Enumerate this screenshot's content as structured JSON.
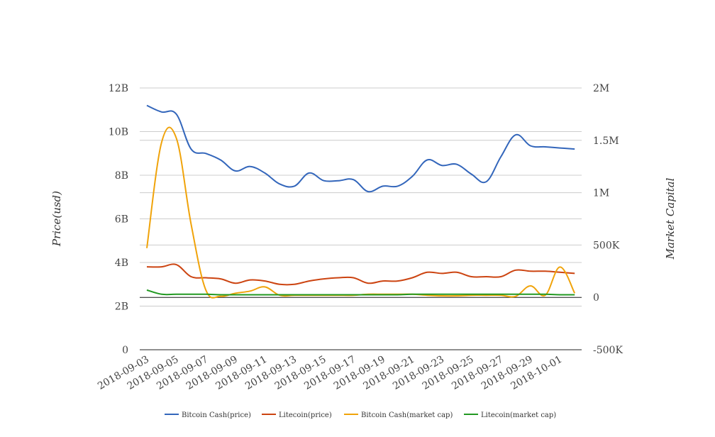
{
  "chart_data": {
    "type": "line",
    "title": "",
    "xlabel": "",
    "ylabel_left": "Price(usd)",
    "ylabel_right": "Market Capital",
    "x": [
      "2018-09-03",
      "2018-09-04",
      "2018-09-05",
      "2018-09-06",
      "2018-09-07",
      "2018-09-08",
      "2018-09-09",
      "2018-09-10",
      "2018-09-11",
      "2018-09-12",
      "2018-09-13",
      "2018-09-14",
      "2018-09-15",
      "2018-09-16",
      "2018-09-17",
      "2018-09-18",
      "2018-09-19",
      "2018-09-20",
      "2018-09-21",
      "2018-09-22",
      "2018-09-23",
      "2018-09-24",
      "2018-09-25",
      "2018-09-26",
      "2018-09-27",
      "2018-09-28",
      "2018-09-29",
      "2018-09-30",
      "2018-10-01",
      "2018-10-02"
    ],
    "x_tick_labels": [
      "2018-09-03",
      "2018-09-05",
      "2018-09-07",
      "2018-09-09",
      "2018-09-11",
      "2018-09-13",
      "2018-09-15",
      "2018-09-17",
      "2018-09-19",
      "2018-09-21",
      "2018-09-23",
      "2018-09-25",
      "2018-09-27",
      "2018-09-29",
      "2018-10-01"
    ],
    "y_left": {
      "ticks": [
        0,
        2,
        4,
        6,
        8,
        10,
        12
      ],
      "tick_labels": [
        "0",
        "2B",
        "4B",
        "6B",
        "8B",
        "10B",
        "12B"
      ],
      "range": [
        0,
        12
      ],
      "unit": "B"
    },
    "y_right": {
      "ticks": [
        -500,
        0,
        500,
        1000,
        1500,
        2000
      ],
      "tick_labels": [
        "-500K",
        "0",
        "500K",
        "1M",
        "1.5M",
        "2M"
      ],
      "range": [
        -500,
        2000
      ],
      "unit": "K"
    },
    "grid": true,
    "legend_position": "bottom",
    "series": [
      {
        "name": "Bitcoin Cash(price)",
        "axis": "left",
        "color": "#3366bb",
        "values": [
          11.2,
          10.9,
          10.8,
          9.2,
          9.0,
          8.7,
          8.2,
          8.4,
          8.1,
          7.6,
          7.5,
          8.1,
          7.75,
          7.75,
          7.8,
          7.25,
          7.5,
          7.5,
          7.95,
          8.7,
          8.45,
          8.5,
          8.05,
          7.7,
          8.85,
          9.85,
          9.35,
          9.3,
          9.25,
          9.2
        ]
      },
      {
        "name": "Litecoin(price)",
        "axis": "left",
        "color": "#cc4411",
        "values": [
          3.8,
          3.8,
          3.9,
          3.35,
          3.3,
          3.25,
          3.05,
          3.2,
          3.15,
          3.0,
          3.0,
          3.15,
          3.25,
          3.3,
          3.3,
          3.05,
          3.15,
          3.15,
          3.3,
          3.55,
          3.5,
          3.55,
          3.35,
          3.35,
          3.35,
          3.65,
          3.6,
          3.6,
          3.55,
          3.5
        ]
      },
      {
        "name": "Bitcoin Cash(market cap)",
        "axis": "right",
        "color": "#f0a30a",
        "values": [
          470,
          1480,
          1520,
          700,
          70,
          10,
          40,
          60,
          100,
          20,
          20,
          20,
          20,
          20,
          20,
          30,
          30,
          30,
          30,
          20,
          15,
          15,
          20,
          20,
          20,
          10,
          110,
          20,
          290,
          40
        ]
      },
      {
        "name": "Litecoin(market cap)",
        "axis": "right",
        "color": "#229922",
        "values": [
          70,
          30,
          30,
          30,
          30,
          25,
          25,
          25,
          25,
          25,
          25,
          25,
          25,
          25,
          25,
          25,
          25,
          25,
          30,
          30,
          30,
          30,
          30,
          30,
          30,
          30,
          30,
          30,
          25,
          25
        ]
      }
    ]
  }
}
